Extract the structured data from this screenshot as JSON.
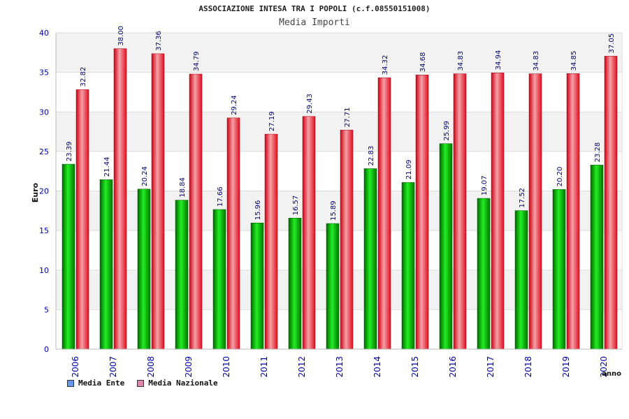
{
  "chart_data": {
    "type": "bar",
    "title": "ASSOCIAZIONE INTESA TRA I POPOLI (c.f.08550151008)",
    "subtitle": "Media Importi",
    "xlabel": "anno",
    "ylabel": "Euro",
    "ylim": [
      0,
      40
    ],
    "yticks": [
      0,
      5,
      10,
      15,
      20,
      25,
      30,
      35,
      40
    ],
    "grid": true,
    "legend_position": "bottom-left",
    "categories": [
      "2006",
      "2007",
      "2008",
      "2009",
      "2010",
      "2011",
      "2012",
      "2013",
      "2014",
      "2015",
      "2016",
      "2017",
      "2018",
      "2019",
      "2020"
    ],
    "series": [
      {
        "name": "Media Ente",
        "color": "#00b400",
        "legend_color": "#6699ee",
        "values": [
          23.39,
          21.44,
          20.24,
          18.84,
          17.66,
          15.96,
          16.57,
          15.89,
          22.83,
          21.09,
          25.99,
          19.07,
          17.52,
          20.2,
          23.28
        ],
        "labels": [
          "23.39",
          "21.44",
          "20.24",
          "18.84",
          "17.66",
          "15.96",
          "16.57",
          "15.89",
          "22.83",
          "21.09",
          "25.99",
          "19.07",
          "17.52",
          "20.20",
          "23.28"
        ]
      },
      {
        "name": "Media Nazionale",
        "color": "#e8283a",
        "legend_color": "#dd88aa",
        "values": [
          32.82,
          38.0,
          37.36,
          34.79,
          29.24,
          27.19,
          29.43,
          27.71,
          34.32,
          34.68,
          34.83,
          34.94,
          34.83,
          34.85,
          37.05
        ],
        "labels": [
          "32.82",
          "38.00",
          "37.36",
          "34.79",
          "29.24",
          "27.19",
          "29.43",
          "27.71",
          "34.32",
          "34.68",
          "34.83",
          "34.94",
          "34.83",
          "34.85",
          "37.05"
        ]
      }
    ]
  }
}
